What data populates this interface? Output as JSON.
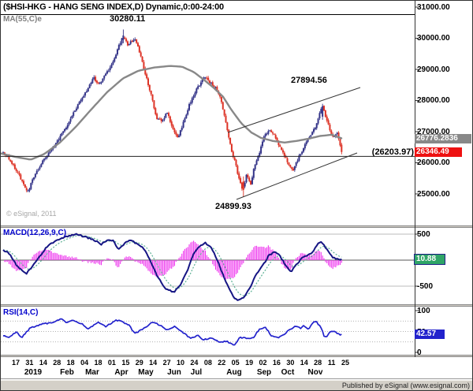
{
  "header": {
    "title": "($HSI-HKG - HANG SENG INDEX,D) Dynamic,0:00-24:00",
    "ma_label": "MA(55,C)e"
  },
  "watermark": "© eSignal, 2011",
  "footer": "Published by eSignal (www.esignal.com)",
  "colors": {
    "up_candle": "#333388",
    "down_candle": "#dd3326",
    "ma_line": "#888888",
    "macd_line": "#161684",
    "signal_line": "#5ab093",
    "histogram": "#ee33ee",
    "rsi_line": "#2222cc",
    "study_label": "#0000cc",
    "badge_ma": "#888888",
    "badge_last": "#ee1111",
    "badge_macd": "#2fa567",
    "badge_rsi": "#2222cc",
    "separator": "#d4d0c8"
  },
  "chart_data": [
    {
      "type": "candlestick",
      "symbol": "$HSI-HKG",
      "name": "HANG SENG INDEX",
      "interval": "D",
      "session": "Dynamic,0:00-24:00",
      "ma_value": "26776.2836",
      "last_price": "26346.49",
      "hline": 26203.97,
      "annotations": {
        "april_high": "30280.11",
        "november_high": "27894.56",
        "august_low": "24899.93",
        "support": "(26203.97)"
      },
      "y_ticks": [
        31000,
        30000,
        29000,
        28000,
        27000,
        26000,
        25000
      ],
      "x_tick_labels": [
        "17",
        "31",
        "14",
        "28",
        "18",
        "04",
        "18",
        "01",
        "15",
        "29",
        "14",
        "27",
        "10",
        "24",
        "08",
        "22",
        "05",
        "19",
        "02",
        "16",
        "30",
        "14",
        "28",
        "11",
        "25"
      ],
      "x_months": [
        [
          "2019",
          41
        ],
        [
          "Feb",
          84
        ],
        [
          "Mar",
          116
        ],
        [
          "Apr",
          153
        ],
        [
          "May",
          184
        ],
        [
          "Jun",
          220
        ],
        [
          "Jul",
          248
        ],
        [
          "Aug",
          296
        ],
        [
          "Sep",
          334
        ],
        [
          "Oct",
          364
        ],
        [
          "Nov",
          399
        ]
      ],
      "price_anchors": [
        [
          2,
          26350
        ],
        [
          8,
          26200
        ],
        [
          15,
          25950
        ],
        [
          22,
          25650
        ],
        [
          28,
          25350
        ],
        [
          33,
          25060
        ],
        [
          36,
          25180
        ],
        [
          40,
          25430
        ],
        [
          46,
          25720
        ],
        [
          52,
          26000
        ],
        [
          60,
          26260
        ],
        [
          68,
          26560
        ],
        [
          75,
          26820
        ],
        [
          83,
          27120
        ],
        [
          90,
          27520
        ],
        [
          97,
          27820
        ],
        [
          104,
          28120
        ],
        [
          111,
          28420
        ],
        [
          118,
          28720
        ],
        [
          124,
          28520
        ],
        [
          130,
          28720
        ],
        [
          136,
          28960
        ],
        [
          143,
          29260
        ],
        [
          150,
          29760
        ],
        [
          155,
          30060
        ],
        [
          161,
          29800
        ],
        [
          166,
          29900
        ],
        [
          171,
          29960
        ],
        [
          176,
          29560
        ],
        [
          182,
          28960
        ],
        [
          190,
          28260
        ],
        [
          197,
          27460
        ],
        [
          204,
          27330
        ],
        [
          211,
          27630
        ],
        [
          218,
          27060
        ],
        [
          225,
          26820
        ],
        [
          232,
          27330
        ],
        [
          240,
          27930
        ],
        [
          248,
          28330
        ],
        [
          255,
          28630
        ],
        [
          260,
          28780
        ],
        [
          266,
          28560
        ],
        [
          272,
          28430
        ],
        [
          278,
          28130
        ],
        [
          283,
          27630
        ],
        [
          288,
          26960
        ],
        [
          293,
          26380
        ],
        [
          298,
          25930
        ],
        [
          303,
          25380
        ],
        [
          307,
          25130
        ],
        [
          312,
          25630
        ],
        [
          317,
          25330
        ],
        [
          322,
          25930
        ],
        [
          328,
          26330
        ],
        [
          334,
          26830
        ],
        [
          340,
          27060
        ],
        [
          347,
          26860
        ],
        [
          353,
          26530
        ],
        [
          360,
          26230
        ],
        [
          366,
          25930
        ],
        [
          371,
          25730
        ],
        [
          377,
          26130
        ],
        [
          383,
          26430
        ],
        [
          389,
          26730
        ],
        [
          394,
          26930
        ],
        [
          399,
          27130
        ],
        [
          404,
          27580
        ],
        [
          408,
          27830
        ],
        [
          413,
          27380
        ],
        [
          418,
          27030
        ],
        [
          422,
          26830
        ],
        [
          427,
          26930
        ],
        [
          430,
          26630
        ],
        [
          433,
          26346
        ]
      ],
      "ma_anchors": [
        [
          0,
          26300
        ],
        [
          20,
          26180
        ],
        [
          38,
          26100
        ],
        [
          55,
          26280
        ],
        [
          75,
          26650
        ],
        [
          95,
          27150
        ],
        [
          115,
          27720
        ],
        [
          135,
          28270
        ],
        [
          155,
          28710
        ],
        [
          175,
          28960
        ],
        [
          195,
          29060
        ],
        [
          215,
          29110
        ],
        [
          230,
          29085
        ],
        [
          245,
          28910
        ],
        [
          258,
          28660
        ],
        [
          270,
          28410
        ],
        [
          282,
          28120
        ],
        [
          292,
          27720
        ],
        [
          305,
          27270
        ],
        [
          318,
          26970
        ],
        [
          330,
          26800
        ],
        [
          345,
          26700
        ],
        [
          360,
          26650
        ],
        [
          375,
          26700
        ],
        [
          390,
          26770
        ],
        [
          405,
          26860
        ],
        [
          420,
          26900
        ],
        [
          433,
          26776.28
        ]
      ],
      "trendlines": [
        [
          288,
          167,
          456,
          110
        ],
        [
          299,
          252,
          452,
          193
        ]
      ]
    },
    {
      "type": "macd",
      "label": "MACD(12,26,9,C)",
      "params": "12,26,9,C",
      "current": "10.88",
      "y_ticks": [
        500,
        0,
        -500
      ],
      "line_anchors": [
        [
          0,
          212
        ],
        [
          10,
          136
        ],
        [
          20,
          -91
        ],
        [
          32,
          -273
        ],
        [
          45,
          -15
        ],
        [
          60,
          288
        ],
        [
          75,
          409
        ],
        [
          95,
          500
        ],
        [
          108,
          439
        ],
        [
          118,
          394
        ],
        [
          127,
          303
        ],
        [
          135,
          394
        ],
        [
          143,
          364
        ],
        [
          150,
          197
        ],
        [
          158,
          348
        ],
        [
          165,
          394
        ],
        [
          172,
          318
        ],
        [
          180,
          258
        ],
        [
          190,
          -15
        ],
        [
          200,
          -348
        ],
        [
          210,
          -561
        ],
        [
          220,
          -621
        ],
        [
          228,
          -470
        ],
        [
          237,
          -197
        ],
        [
          245,
          136
        ],
        [
          253,
          288
        ],
        [
          260,
          333
        ],
        [
          268,
          212
        ],
        [
          275,
          -15
        ],
        [
          283,
          -318
        ],
        [
          290,
          -561
        ],
        [
          297,
          -742
        ],
        [
          303,
          -773
        ],
        [
          310,
          -697
        ],
        [
          318,
          -470
        ],
        [
          325,
          -242
        ],
        [
          333,
          -91
        ],
        [
          340,
          91
        ],
        [
          348,
          167
        ],
        [
          355,
          61
        ],
        [
          362,
          -121
        ],
        [
          368,
          -227
        ],
        [
          375,
          -91
        ],
        [
          382,
          45
        ],
        [
          390,
          91
        ],
        [
          397,
          182
        ],
        [
          403,
          333
        ],
        [
          407,
          364
        ],
        [
          413,
          212
        ],
        [
          420,
          61
        ],
        [
          427,
          15
        ],
        [
          433,
          10.88
        ]
      ]
    },
    {
      "type": "rsi",
      "label": "RSI(14,C)",
      "current": "42.57",
      "y_ticks": [
        100,
        50,
        0
      ],
      "gridlines": [
        75,
        50,
        25
      ],
      "line_anchors": [
        [
          0,
          43
        ],
        [
          10,
          36
        ],
        [
          20,
          49
        ],
        [
          26,
          34
        ],
        [
          37,
          58
        ],
        [
          53,
          68
        ],
        [
          67,
          72
        ],
        [
          77,
          81
        ],
        [
          83,
          72
        ],
        [
          90,
          77
        ],
        [
          103,
          68
        ],
        [
          110,
          55
        ],
        [
          123,
          72
        ],
        [
          133,
          62
        ],
        [
          147,
          77
        ],
        [
          155,
          73
        ],
        [
          163,
          64
        ],
        [
          170,
          45
        ],
        [
          180,
          55
        ],
        [
          193,
          73
        ],
        [
          203,
          64
        ],
        [
          210,
          53
        ],
        [
          220,
          62
        ],
        [
          233,
          45
        ],
        [
          240,
          34
        ],
        [
          250,
          40
        ],
        [
          257,
          30
        ],
        [
          267,
          34
        ],
        [
          277,
          25
        ],
        [
          287,
          26
        ],
        [
          297,
          17
        ],
        [
          303,
          36
        ],
        [
          310,
          34
        ],
        [
          320,
          34
        ],
        [
          327,
          53
        ],
        [
          335,
          62
        ],
        [
          343,
          40
        ],
        [
          352,
          34
        ],
        [
          357,
          40
        ],
        [
          367,
          55
        ],
        [
          373,
          62
        ],
        [
          380,
          58
        ],
        [
          385,
          64
        ],
        [
          390,
          55
        ],
        [
          397,
          72
        ],
        [
          400,
          74
        ],
        [
          407,
          58
        ],
        [
          410,
          40
        ],
        [
          413,
          36
        ],
        [
          418,
          49
        ],
        [
          423,
          49
        ],
        [
          430,
          42.57
        ]
      ]
    }
  ]
}
